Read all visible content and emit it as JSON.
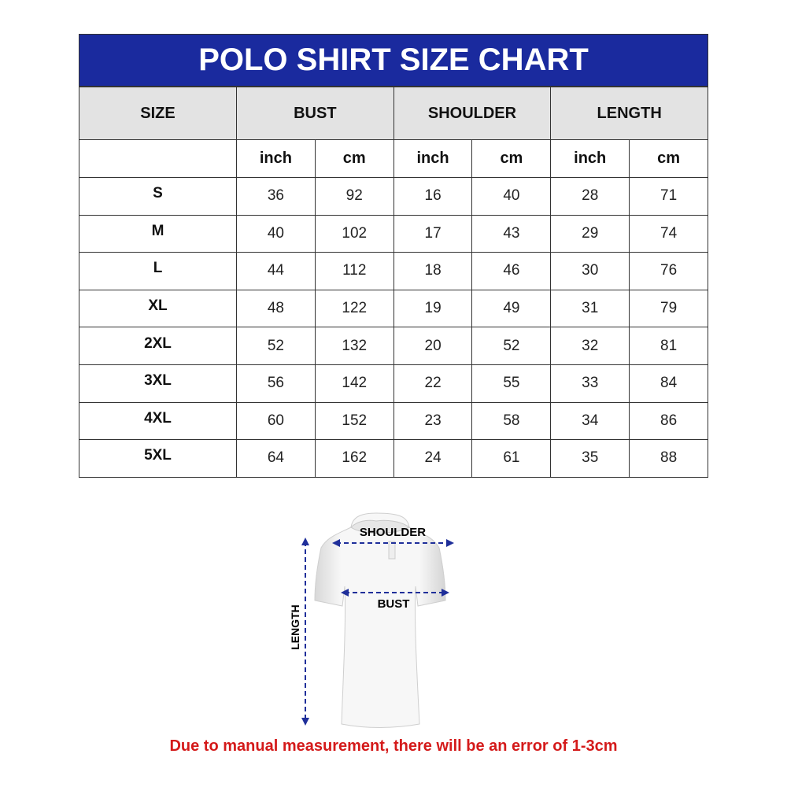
{
  "title": "POLO SHIRT SIZE CHART",
  "headers": {
    "size": "SIZE",
    "bust": "BUST",
    "shoulder": "SHOULDER",
    "length": "LENGTH"
  },
  "units": [
    "inch",
    "cm",
    "inch",
    "cm",
    "inch",
    "cm"
  ],
  "rows": [
    {
      "size": "S",
      "values": [
        "36",
        "92",
        "16",
        "40",
        "28",
        "71"
      ]
    },
    {
      "size": "M",
      "values": [
        "40",
        "102",
        "17",
        "43",
        "29",
        "74"
      ]
    },
    {
      "size": "L",
      "values": [
        "44",
        "112",
        "18",
        "46",
        "30",
        "76"
      ]
    },
    {
      "size": "XL",
      "values": [
        "48",
        "122",
        "19",
        "49",
        "31",
        "79"
      ]
    },
    {
      "size": "2XL",
      "values": [
        "52",
        "132",
        "20",
        "52",
        "32",
        "81"
      ]
    },
    {
      "size": "3XL",
      "values": [
        "56",
        "142",
        "22",
        "55",
        "33",
        "84"
      ]
    },
    {
      "size": "4XL",
      "values": [
        "60",
        "152",
        "23",
        "58",
        "34",
        "86"
      ]
    },
    {
      "size": "5XL",
      "values": [
        "64",
        "162",
        "24",
        "61",
        "35",
        "88"
      ]
    }
  ],
  "diagram": {
    "shoulder": "SHOULDER",
    "bust": "BUST",
    "length": "LENGTH"
  },
  "note": "Due to manual measurement, there will be an error of 1-3cm",
  "colors": {
    "header": "#1a2a9e",
    "note": "#d41a1a",
    "arrow": "#1f2f9a"
  }
}
